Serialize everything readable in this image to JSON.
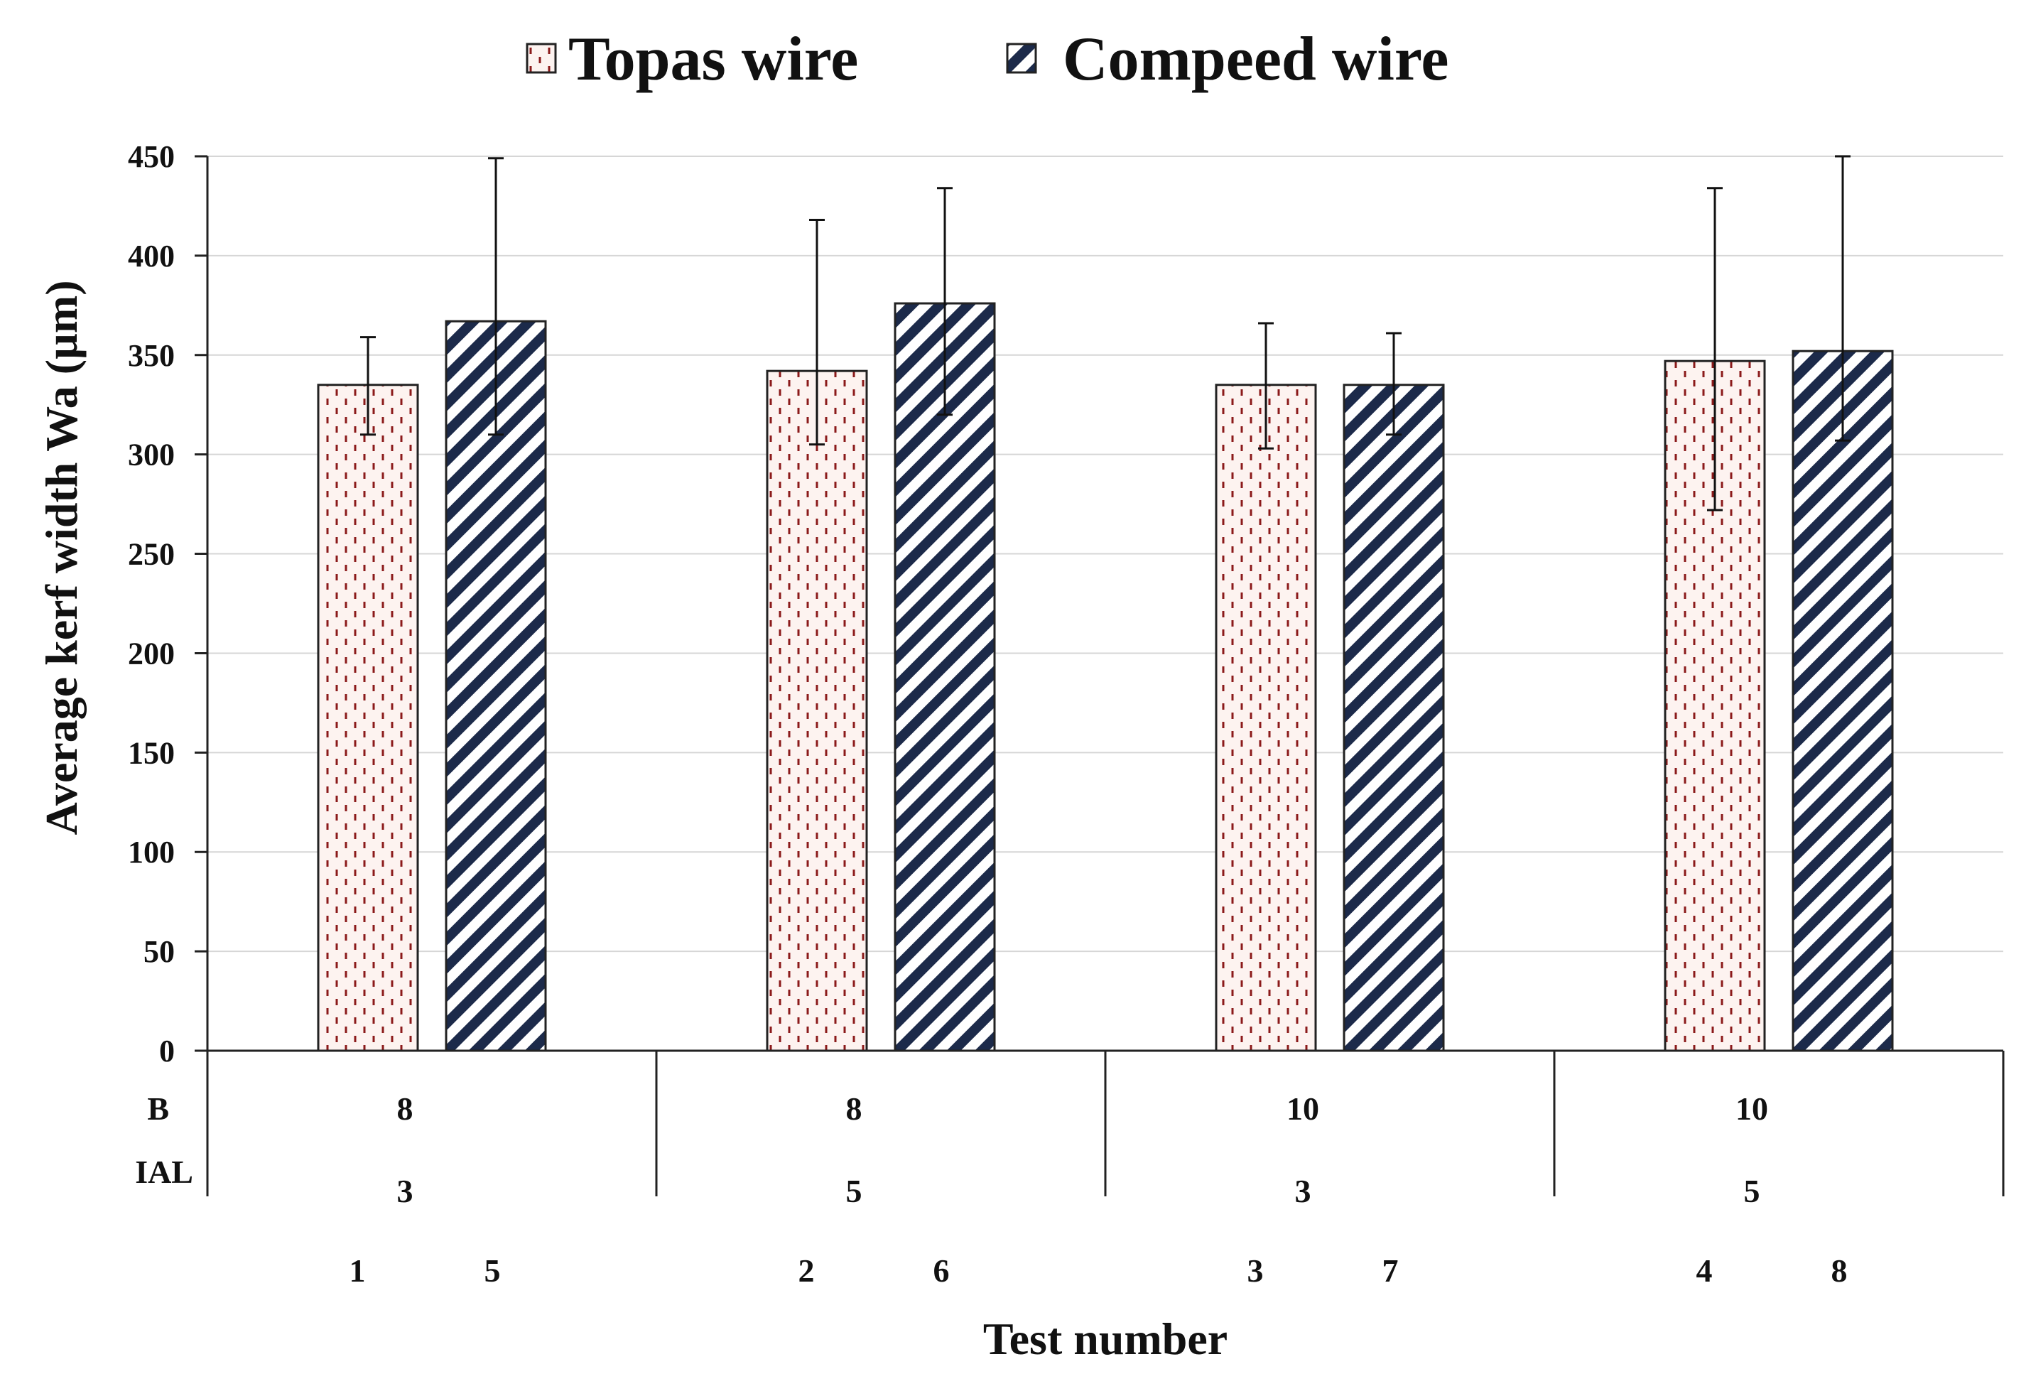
{
  "chart_data": {
    "type": "bar",
    "xlabel": "Test number",
    "ylabel": "Average kerf width Wa (µm)",
    "ylim": [
      0,
      450
    ],
    "yticks": [
      "0",
      "50",
      "100",
      "150",
      "200",
      "250",
      "300",
      "350",
      "400",
      "450"
    ],
    "grid": true,
    "legend_position": "top-center",
    "row_labels": {
      "b": "B",
      "ial": "IAL"
    },
    "groups": [
      {
        "b": "8",
        "ial": "3",
        "tests": [
          "1",
          "5"
        ]
      },
      {
        "b": "8",
        "ial": "5",
        "tests": [
          "2",
          "6"
        ]
      },
      {
        "b": "10",
        "ial": "3",
        "tests": [
          "3",
          "7"
        ]
      },
      {
        "b": "10",
        "ial": "5",
        "tests": [
          "4",
          "8"
        ]
      }
    ],
    "series": [
      {
        "name": "Topas wire",
        "pattern": "dashed-vertical",
        "color": "#8b1a1a",
        "fill": "#fdf3f0",
        "values": [
          335,
          342,
          335,
          347
        ],
        "error_low": [
          310,
          305,
          303,
          272
        ],
        "error_high": [
          359,
          418,
          366,
          434
        ]
      },
      {
        "name": "Compeed wire",
        "pattern": "diagonal-stripes",
        "color": "#1c2a4a",
        "fill": "#ffffff",
        "values": [
          367,
          376,
          335,
          352
        ],
        "error_low": [
          310,
          320,
          310,
          307
        ],
        "error_high": [
          449,
          434,
          361,
          450
        ]
      }
    ]
  }
}
